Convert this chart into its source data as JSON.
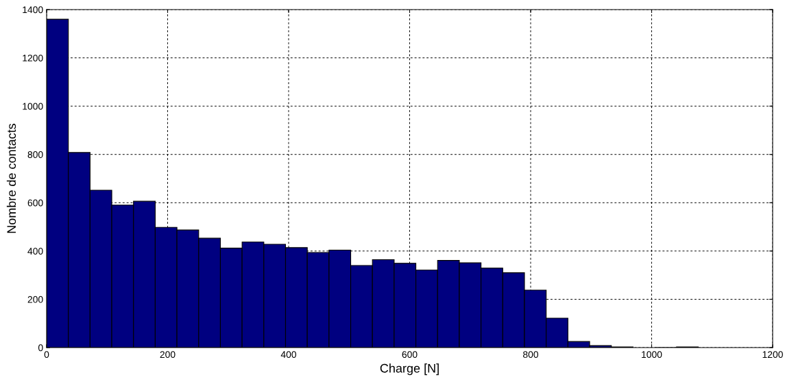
{
  "chart_data": {
    "type": "histogram",
    "xlabel": "Charge [N]",
    "ylabel": "Nombre de contacts",
    "bins": [
      0,
      35.9,
      71.8,
      107.7,
      143.6,
      179.5,
      215.4,
      251.3,
      287.2,
      323.1,
      359,
      394.9,
      430.8,
      466.7,
      502.6,
      538.5,
      574.4,
      610.3,
      646.2,
      682.1,
      718,
      753.9,
      789.8,
      825.7,
      861.6,
      897.5,
      933.4,
      969.3,
      1005.2,
      1041.1,
      1077
    ],
    "values": [
      1360,
      808,
      652,
      590,
      606,
      498,
      487,
      453,
      412,
      437,
      428,
      414,
      394,
      404,
      340,
      364,
      349,
      321,
      361,
      351,
      329,
      310,
      238,
      122,
      25,
      8,
      3,
      null,
      0,
      3
    ],
    "color": "#000080",
    "xlim": [
      0,
      1200
    ],
    "xticks": [
      0,
      200,
      400,
      600,
      800,
      1000,
      1200
    ],
    "ylim": [
      0,
      1400
    ],
    "yticks": [
      0,
      200,
      400,
      600,
      800,
      1000,
      1200,
      1400
    ],
    "grid": true
  }
}
